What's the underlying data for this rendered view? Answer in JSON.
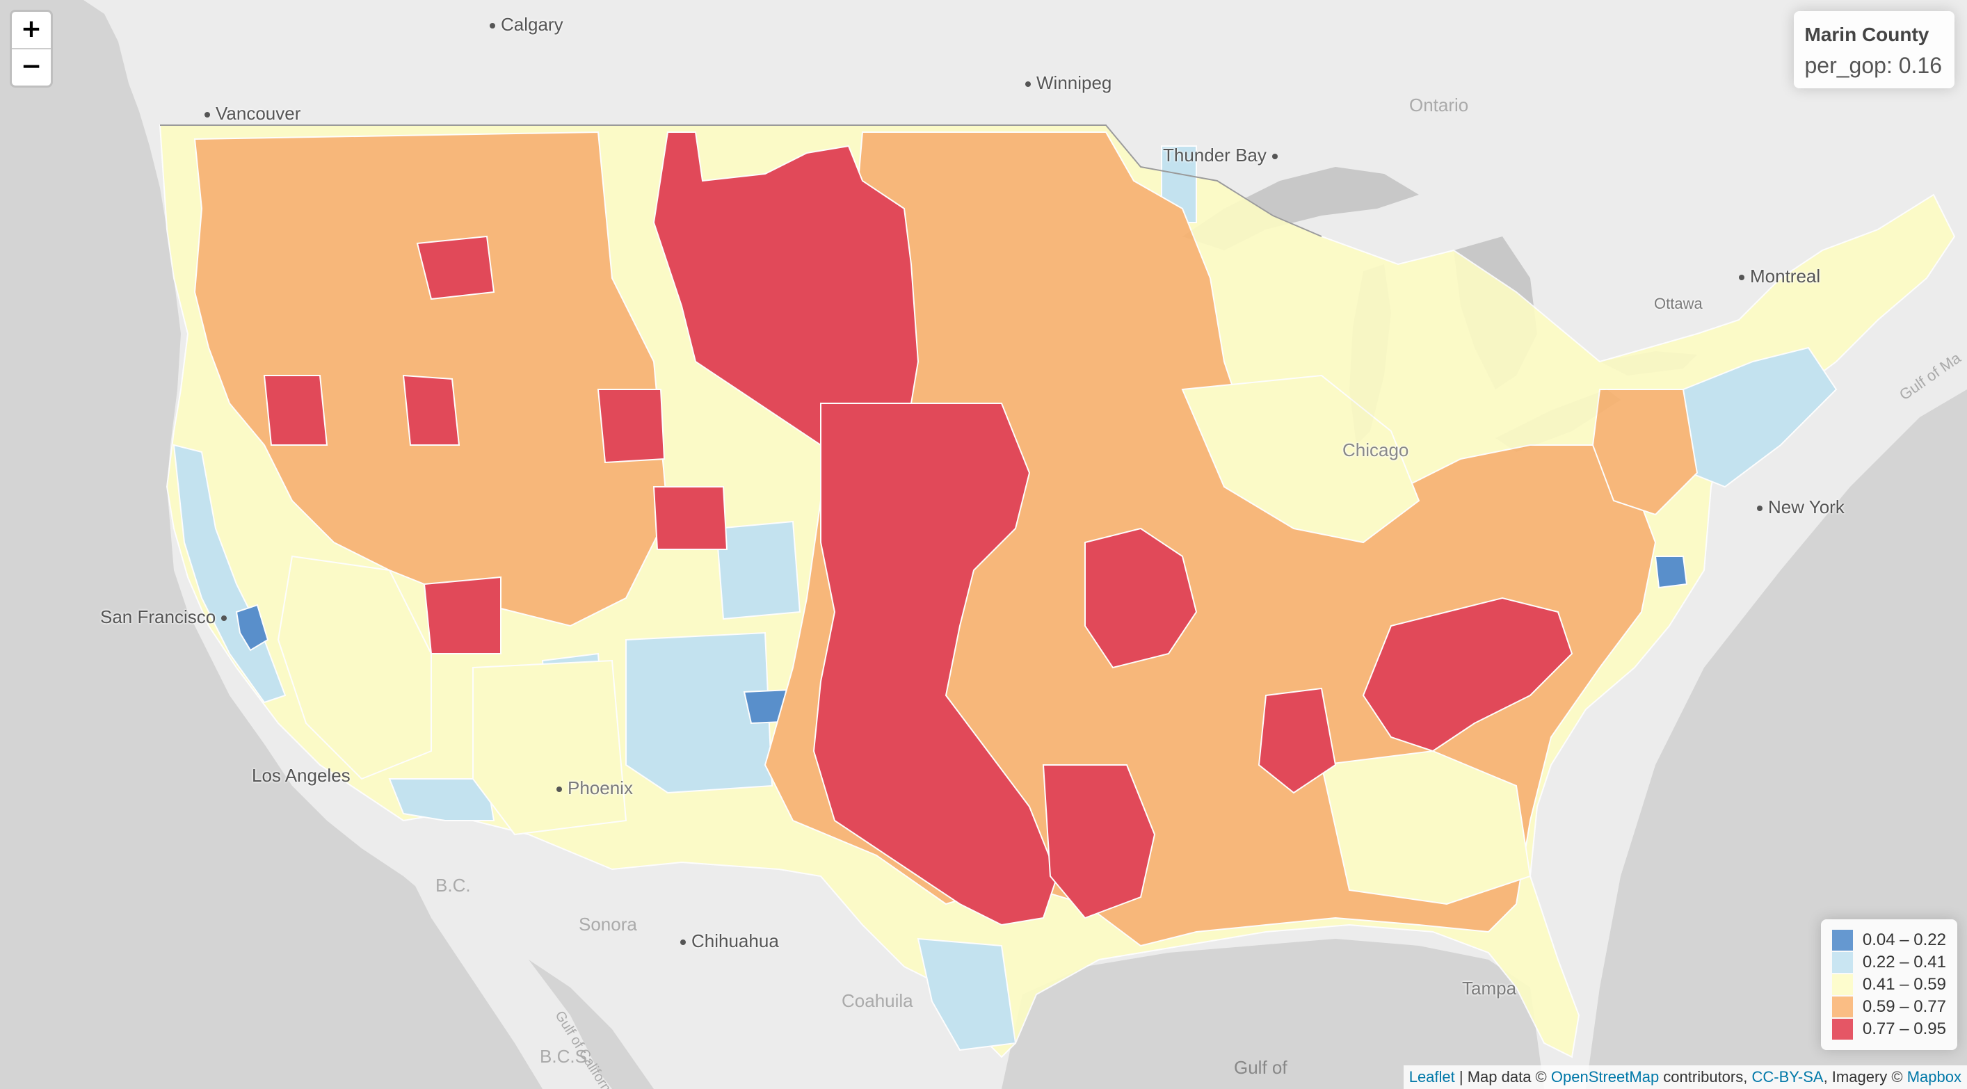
{
  "map": {
    "zoom_in_label": "+",
    "zoom_out_label": "−",
    "info_box": {
      "title": "Marin County",
      "value": "per_gop: 0.16"
    },
    "legend": [
      {
        "label": "0.04 – 0.22",
        "color": "#4a86c8"
      },
      {
        "label": "0.22 – 0.41",
        "color": "#bfe1f0"
      },
      {
        "label": "0.41 – 0.59",
        "color": "#fdfcc4"
      },
      {
        "label": "0.59 – 0.77",
        "color": "#f9b26e"
      },
      {
        "label": "0.77 – 0.95",
        "color": "#e0384a"
      }
    ],
    "attribution": {
      "leaflet": "Leaflet",
      "sep1": " | Map data © ",
      "osm": "OpenStreetMap",
      "sep2": " contributors, ",
      "license": "CC-BY-SA",
      "sep3": ", Imagery © ",
      "mapbox": "Mapbox"
    },
    "cities": {
      "calgary": "Calgary",
      "winnipeg": "Winnipeg",
      "vancouver": "Vancouver",
      "thunder_bay": "Thunder Bay",
      "montreal": "Montreal",
      "ottawa": "Ottawa",
      "ontario": "Ontario",
      "new_york": "New York",
      "chicago": "Chicago",
      "san_francisco": "San Francisco",
      "los_angeles": "Los Angeles",
      "phoenix": "Phoenix",
      "sonora": "Sonora",
      "chihuahua": "Chihuahua",
      "coahuila": "Coahuila",
      "tampa": "Tampa",
      "bc": "B.C.",
      "bcs": "B.C.S.",
      "gulf_of": "Gulf of",
      "gulf_of_california": "Gulf of California",
      "gulf_of_maine": "Gulf of Ma"
    }
  }
}
